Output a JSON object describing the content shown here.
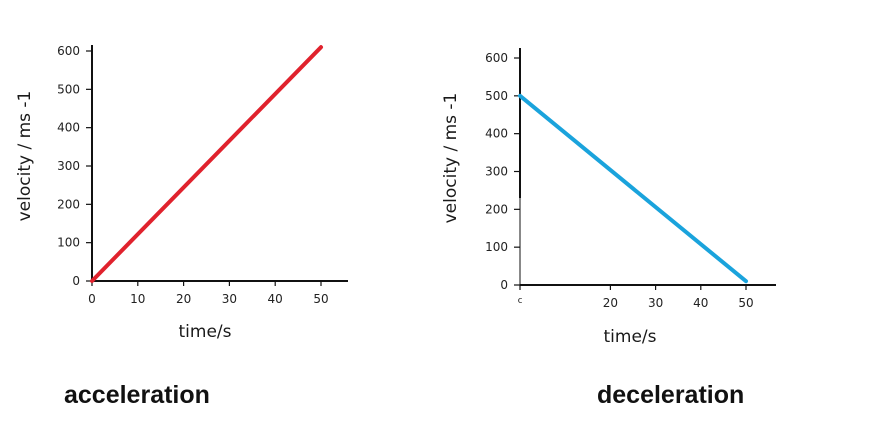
{
  "chart_data": [
    {
      "type": "line",
      "caption": "acceleration",
      "xlabel": "time/s",
      "ylabel": "velocity / ms -1",
      "x_ticks": [
        "0",
        "10",
        "20",
        "30",
        "40",
        "50"
      ],
      "y_ticks": [
        "0",
        "100",
        "200",
        "300",
        "400",
        "500",
        "600"
      ],
      "xlim": [
        0,
        55
      ],
      "ylim": [
        0,
        620
      ],
      "series": [
        {
          "color": "#e0222d",
          "x": [
            0,
            50
          ],
          "y": [
            0,
            610
          ]
        }
      ]
    },
    {
      "type": "line",
      "caption": "deceleration",
      "xlabel": "time/s",
      "ylabel": "velocity / ms -1",
      "x_ticks": [
        "ᑦ",
        "20",
        "30",
        "40",
        "50"
      ],
      "y_ticks": [
        "0",
        "100",
        "200",
        "300",
        "400",
        "500",
        "600"
      ],
      "xlim": [
        0,
        55
      ],
      "ylim": [
        0,
        630
      ],
      "series": [
        {
          "color": "#1aa3dc",
          "x": [
            0,
            50
          ],
          "y": [
            500,
            10
          ]
        }
      ]
    }
  ]
}
